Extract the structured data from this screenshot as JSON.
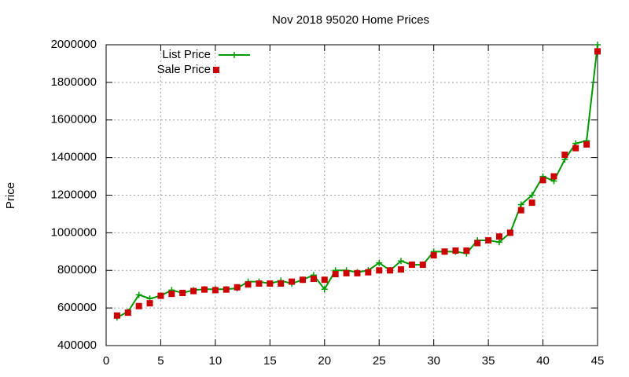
{
  "chart_data": {
    "type": "line",
    "title": "Nov 2018 95020 Home Prices",
    "y_label": "Price",
    "x": [
      1,
      2,
      3,
      4,
      5,
      6,
      7,
      8,
      9,
      10,
      11,
      12,
      13,
      14,
      15,
      16,
      17,
      18,
      19,
      20,
      21,
      22,
      23,
      24,
      25,
      26,
      27,
      28,
      29,
      30,
      31,
      32,
      33,
      34,
      35,
      36,
      37,
      38,
      39,
      40,
      41,
      42,
      43,
      44,
      45
    ],
    "series": [
      {
        "name": "List Price",
        "color": "#009900",
        "mode": "linespoints",
        "values": [
          550000,
          580000,
          670000,
          650000,
          665000,
          695000,
          680000,
          695000,
          700000,
          700000,
          700000,
          705000,
          740000,
          740000,
          730000,
          745000,
          730000,
          750000,
          775000,
          700000,
          800000,
          800000,
          790000,
          800000,
          840000,
          800000,
          850000,
          830000,
          830000,
          900000,
          900000,
          900000,
          890000,
          960000,
          960000,
          950000,
          1000000,
          1150000,
          1200000,
          1300000,
          1275000,
          1390000,
          1475000,
          1490000,
          2000000
        ]
      },
      {
        "name": "Sale Price",
        "color": "#cc0000",
        "mode": "points",
        "values": [
          560000,
          575000,
          610000,
          625000,
          665000,
          675000,
          680000,
          690000,
          698000,
          695000,
          698000,
          710000,
          725000,
          730000,
          730000,
          730000,
          740000,
          750000,
          755000,
          750000,
          780000,
          785000,
          785000,
          790000,
          800000,
          800000,
          805000,
          830000,
          830000,
          880000,
          900000,
          905000,
          905000,
          945000,
          960000,
          980000,
          1000000,
          1120000,
          1160000,
          1280000,
          1300000,
          1415000,
          1450000,
          1470000,
          1965000
        ]
      }
    ],
    "xlim": [
      0,
      45
    ],
    "xticks": [
      0,
      5,
      10,
      15,
      20,
      25,
      30,
      35,
      40,
      45
    ],
    "ylim": [
      400000,
      2000000
    ],
    "yticks": [
      400000,
      600000,
      800000,
      1000000,
      1200000,
      1400000,
      1600000,
      1800000,
      2000000
    ],
    "grid": true,
    "legend": "top-left"
  }
}
